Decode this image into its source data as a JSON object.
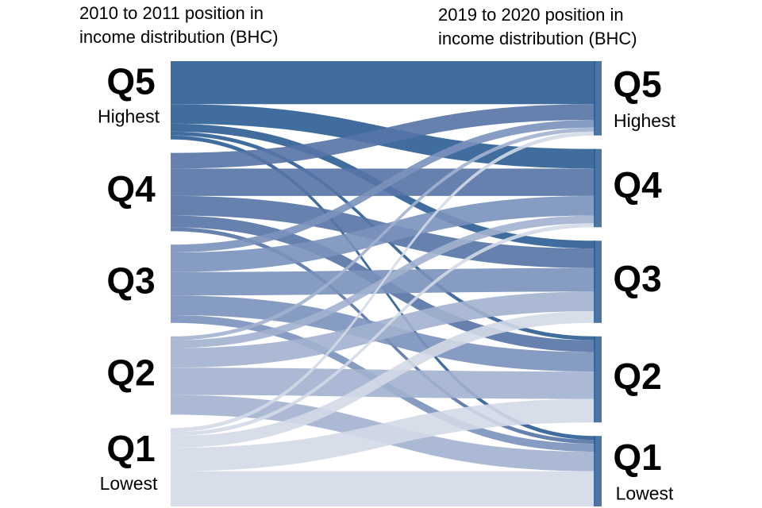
{
  "chart_data": {
    "type": "sankey",
    "left_title": [
      "2010 to 2011 position in",
      "income distribution (BHC)"
    ],
    "right_title": [
      "2019 to 2020 position in",
      "income distribution (BHC)"
    ],
    "nodes": [
      {
        "label": "Q5",
        "sublabel": "Highest",
        "color": "#2b5d93"
      },
      {
        "label": "Q4",
        "color": "#5673a6"
      },
      {
        "label": "Q3",
        "color": "#7a91bb"
      },
      {
        "label": "Q2",
        "color": "#a2b1cf"
      },
      {
        "label": "Q1",
        "sublabel": "Lowest",
        "color": "#d3d9e7"
      }
    ],
    "links": [
      {
        "source": 0,
        "target": 0,
        "value": 11
      },
      {
        "source": 0,
        "target": 1,
        "value": 5
      },
      {
        "source": 0,
        "target": 2,
        "value": 2
      },
      {
        "source": 0,
        "target": 3,
        "value": 1
      },
      {
        "source": 0,
        "target": 4,
        "value": 1
      },
      {
        "source": 1,
        "target": 0,
        "value": 4
      },
      {
        "source": 1,
        "target": 1,
        "value": 7
      },
      {
        "source": 1,
        "target": 2,
        "value": 5
      },
      {
        "source": 1,
        "target": 3,
        "value": 3
      },
      {
        "source": 1,
        "target": 4,
        "value": 1
      },
      {
        "source": 2,
        "target": 0,
        "value": 2
      },
      {
        "source": 2,
        "target": 1,
        "value": 5
      },
      {
        "source": 2,
        "target": 2,
        "value": 6
      },
      {
        "source": 2,
        "target": 3,
        "value": 5
      },
      {
        "source": 2,
        "target": 4,
        "value": 2
      },
      {
        "source": 3,
        "target": 0,
        "value": 1
      },
      {
        "source": 3,
        "target": 1,
        "value": 2
      },
      {
        "source": 3,
        "target": 2,
        "value": 5
      },
      {
        "source": 3,
        "target": 3,
        "value": 7
      },
      {
        "source": 3,
        "target": 4,
        "value": 5
      },
      {
        "source": 4,
        "target": 0,
        "value": 1
      },
      {
        "source": 4,
        "target": 1,
        "value": 1
      },
      {
        "source": 4,
        "target": 2,
        "value": 3
      },
      {
        "source": 4,
        "target": 3,
        "value": 6
      },
      {
        "source": 4,
        "target": 4,
        "value": 9
      }
    ]
  }
}
